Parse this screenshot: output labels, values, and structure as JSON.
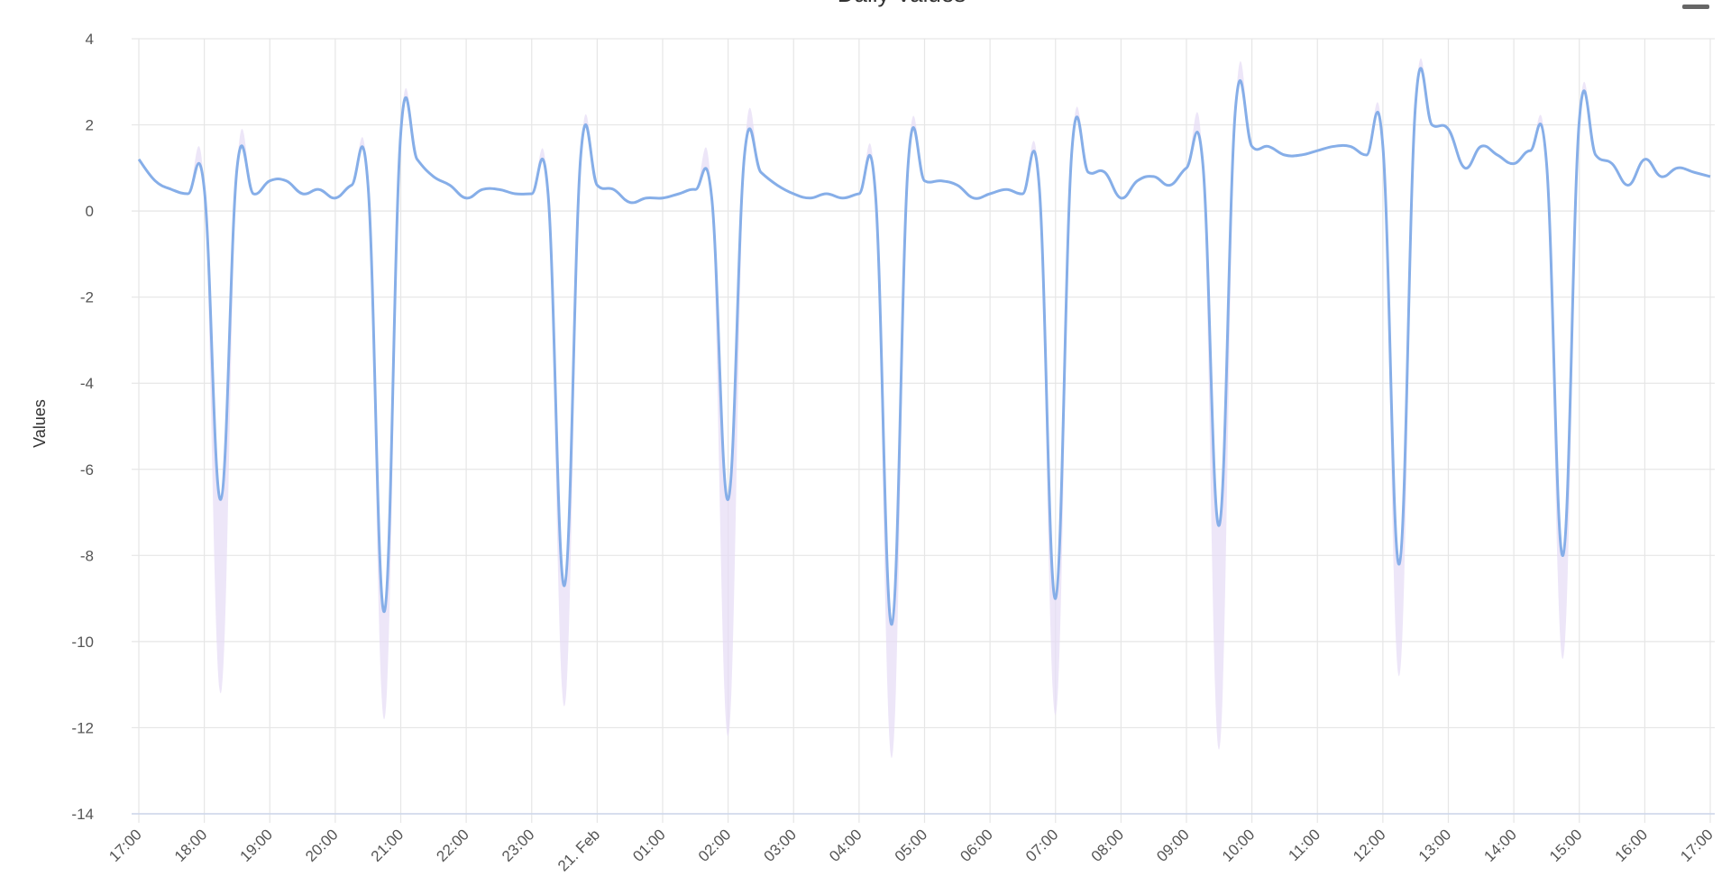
{
  "chart_data": {
    "type": "line",
    "title": "Daily Values",
    "y_label": "Values",
    "xticks": [
      "17:00",
      "18:00",
      "19:00",
      "20:00",
      "21:00",
      "22:00",
      "23:00",
      "21. Feb",
      "01:00",
      "02:00",
      "03:00",
      "04:00",
      "05:00",
      "06:00",
      "07:00",
      "08:00",
      "09:00",
      "10:00",
      "11:00",
      "12:00",
      "13:00",
      "14:00",
      "15:00",
      "16:00",
      "17:00"
    ],
    "ylim": [
      -14,
      4
    ],
    "yticks": [
      4,
      2,
      0,
      -2,
      -4,
      -6,
      -8,
      -10,
      -12,
      -14
    ],
    "grid": true,
    "series": [
      {
        "color": "#86aee8",
        "values": [
          1.2,
          0.7,
          0.5,
          0.4,
          0.5,
          -6.7,
          1.0,
          0.4,
          0.7,
          0.7,
          0.4,
          0.5,
          0.3,
          0.6,
          0.6,
          -9.3,
          1.8,
          1.2,
          0.8,
          0.6,
          0.3,
          0.5,
          0.5,
          0.4,
          0.4,
          0.4,
          -8.7,
          1.3,
          0.6,
          0.5,
          0.2,
          0.3,
          0.3,
          0.4,
          0.5,
          0.3,
          -6.7,
          1.3,
          0.9,
          0.6,
          0.4,
          0.3,
          0.4,
          0.3,
          0.4,
          0.4,
          -9.6,
          1.1,
          0.7,
          0.7,
          0.6,
          0.3,
          0.4,
          0.5,
          0.4,
          0.6,
          -9.0,
          1.4,
          0.9,
          0.9,
          0.3,
          0.7,
          0.8,
          0.6,
          1.0,
          1.1,
          -7.3,
          2.4,
          1.5,
          1.5,
          1.3,
          1.3,
          1.4,
          1.5,
          1.5,
          1.3,
          1.5,
          -8.2,
          2.5,
          2.0,
          1.9,
          1.0,
          1.5,
          1.3,
          1.1,
          1.4,
          1.1,
          -8.0,
          2.1,
          1.3,
          1.1,
          0.6,
          1.2,
          0.8,
          1.0,
          0.9,
          0.8
        ]
      },
      {
        "color": "#e6dcf5",
        "values": [
          1.2,
          0.7,
          0.5,
          0.4,
          0.5,
          -11.2,
          1.0,
          0.4,
          0.7,
          0.7,
          0.4,
          0.5,
          0.3,
          0.6,
          0.6,
          -11.8,
          1.8,
          1.2,
          0.8,
          0.6,
          0.3,
          0.5,
          0.5,
          0.4,
          0.4,
          0.4,
          -11.5,
          1.3,
          0.6,
          0.5,
          0.2,
          0.3,
          0.3,
          0.4,
          0.5,
          0.3,
          -12.2,
          1.3,
          0.9,
          0.6,
          0.4,
          0.3,
          0.4,
          0.3,
          0.4,
          0.4,
          -12.7,
          1.1,
          0.7,
          0.7,
          0.6,
          0.3,
          0.4,
          0.5,
          0.4,
          0.6,
          -11.7,
          1.4,
          0.9,
          0.9,
          0.3,
          0.7,
          0.8,
          0.6,
          1.0,
          1.1,
          -12.5,
          2.4,
          1.5,
          1.5,
          1.3,
          1.3,
          1.4,
          1.5,
          1.5,
          1.3,
          1.5,
          -10.8,
          2.5,
          2.0,
          1.9,
          1.0,
          1.5,
          1.3,
          1.1,
          1.4,
          1.1,
          -10.4,
          2.1,
          1.3,
          1.1,
          0.6,
          1.2,
          0.8,
          1.0,
          0.9,
          0.8
        ]
      }
    ]
  }
}
